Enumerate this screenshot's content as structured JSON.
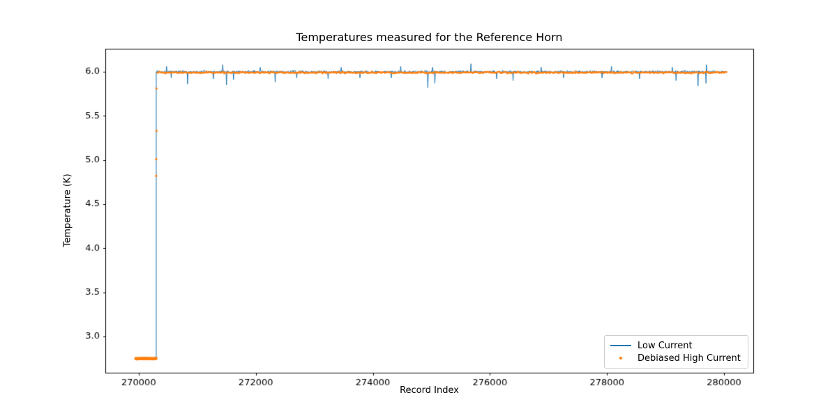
{
  "chart_data": {
    "type": "line",
    "title": "Temperatures measured for the Reference Horn",
    "xlabel": "Record Index",
    "ylabel": "Temperature (K)",
    "xlim": [
      269430,
      280500
    ],
    "ylim": [
      2.59,
      6.26
    ],
    "xticks": [
      270000,
      272000,
      274000,
      276000,
      278000,
      280000
    ],
    "yticks": [
      3.0,
      3.5,
      4.0,
      4.5,
      5.0,
      5.5,
      6.0
    ],
    "grid": false,
    "noise_seed": 42,
    "legend": {
      "position": "lower right",
      "entries": [
        {
          "label": "Low Current",
          "color": "#1f77b4",
          "marker": "line"
        },
        {
          "label": "Debiased High Current",
          "color": "#ff7f0e",
          "marker": "dot"
        }
      ]
    },
    "series": [
      {
        "name": "Low Current",
        "color": "#1f77b4",
        "style": "line",
        "segments": [
          {
            "type": "flat",
            "x0": 269950,
            "x1": 270300,
            "y": 2.75,
            "noise": 0.003
          },
          {
            "type": "vline",
            "x": 270300,
            "y0": 2.75,
            "y1": 6.0
          },
          {
            "type": "noisy",
            "x0": 270300,
            "x1": 280050,
            "y": 6.0,
            "noise": 0.013
          }
        ],
        "spikes": [
          {
            "x": 270480,
            "y": 6.06
          },
          {
            "x": 270560,
            "y": 5.93
          },
          {
            "x": 270840,
            "y": 5.86
          },
          {
            "x": 271280,
            "y": 5.92
          },
          {
            "x": 271440,
            "y": 6.08
          },
          {
            "x": 271500,
            "y": 5.85
          },
          {
            "x": 271620,
            "y": 5.91
          },
          {
            "x": 272080,
            "y": 6.05
          },
          {
            "x": 272330,
            "y": 5.88
          },
          {
            "x": 272700,
            "y": 5.93
          },
          {
            "x": 273240,
            "y": 5.92
          },
          {
            "x": 273460,
            "y": 6.05
          },
          {
            "x": 273780,
            "y": 5.93
          },
          {
            "x": 274320,
            "y": 5.93
          },
          {
            "x": 274480,
            "y": 6.06
          },
          {
            "x": 274940,
            "y": 5.82
          },
          {
            "x": 275020,
            "y": 6.05
          },
          {
            "x": 275060,
            "y": 5.87
          },
          {
            "x": 275680,
            "y": 6.09
          },
          {
            "x": 276120,
            "y": 5.92
          },
          {
            "x": 276400,
            "y": 5.9
          },
          {
            "x": 276880,
            "y": 6.05
          },
          {
            "x": 277260,
            "y": 5.93
          },
          {
            "x": 277920,
            "y": 5.93
          },
          {
            "x": 278080,
            "y": 6.06
          },
          {
            "x": 278560,
            "y": 5.92
          },
          {
            "x": 279120,
            "y": 6.05
          },
          {
            "x": 279180,
            "y": 5.9
          },
          {
            "x": 279560,
            "y": 5.84
          },
          {
            "x": 279690,
            "y": 5.87
          },
          {
            "x": 279700,
            "y": 6.08
          }
        ]
      },
      {
        "name": "Debiased High Current",
        "color": "#ff7f0e",
        "style": "dots",
        "segments": [
          {
            "type": "flatdots",
            "x0": 269950,
            "x1": 270300,
            "y": 2.75,
            "noise": 0.004,
            "step": 6,
            "radius": 2.1
          },
          {
            "type": "points",
            "radius": 1.6,
            "points": [
              {
                "x": 270300,
                "y": 4.82
              },
              {
                "x": 270300,
                "y": 5.01
              },
              {
                "x": 270305,
                "y": 5.33
              },
              {
                "x": 270305,
                "y": 5.81
              }
            ]
          },
          {
            "type": "noisydots",
            "x0": 270320,
            "x1": 280050,
            "y": 5.99,
            "noise": 0.008,
            "step": 20,
            "radius": 1.4
          }
        ]
      }
    ]
  }
}
